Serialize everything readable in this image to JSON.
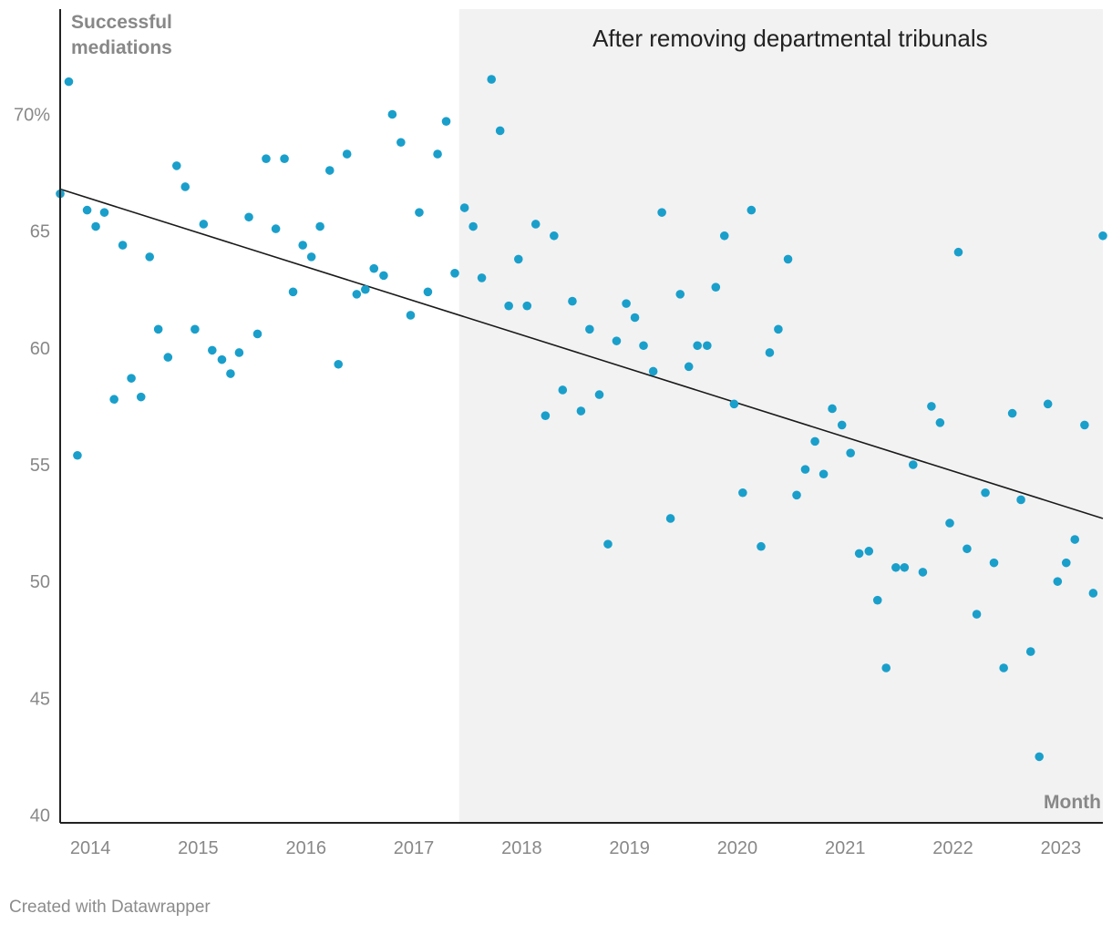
{
  "colors": {
    "point": "#1a9fcb",
    "trend": "#1a1a1a",
    "shade": "#f2f2f2",
    "axis": "#222222",
    "text_muted": "#888888"
  },
  "footer": {
    "credit": "Created with Datawrapper"
  },
  "chart_data": {
    "type": "scatter",
    "title": "",
    "ylabel": "Successful mediations",
    "xlabel": "Month",
    "x_unit": "decimal year",
    "xlim": [
      2013.72,
      2023.39
    ],
    "ylim": [
      40,
      74
    ],
    "y_ticks": [
      {
        "value": 70,
        "label": "70%"
      },
      {
        "value": 65,
        "label": "65"
      },
      {
        "value": 60,
        "label": "60"
      },
      {
        "value": 55,
        "label": "55"
      },
      {
        "value": 50,
        "label": "50"
      },
      {
        "value": 45,
        "label": "45"
      },
      {
        "value": 40,
        "label": "40"
      }
    ],
    "x_ticks": [
      {
        "value": 2014,
        "label": "2014"
      },
      {
        "value": 2015,
        "label": "2015"
      },
      {
        "value": 2016,
        "label": "2016"
      },
      {
        "value": 2017,
        "label": "2017"
      },
      {
        "value": 2018,
        "label": "2018"
      },
      {
        "value": 2019,
        "label": "2019"
      },
      {
        "value": 2020,
        "label": "2020"
      },
      {
        "value": 2021,
        "label": "2021"
      },
      {
        "value": 2022,
        "label": "2022"
      },
      {
        "value": 2023,
        "label": "2023"
      }
    ],
    "shaded_region": {
      "from": 2017.42,
      "to": 2023.39,
      "label": "After removing departmental tribunals"
    },
    "trendline": {
      "from": [
        2013.72,
        66.8
      ],
      "to": [
        2023.39,
        52.7
      ]
    },
    "series": [
      {
        "name": "Successful mediations",
        "points": [
          [
            2013.72,
            66.6
          ],
          [
            2013.8,
            71.4
          ],
          [
            2013.88,
            55.4
          ],
          [
            2013.97,
            65.9
          ],
          [
            2014.05,
            65.2
          ],
          [
            2014.13,
            65.8
          ],
          [
            2014.22,
            57.8
          ],
          [
            2014.3,
            64.4
          ],
          [
            2014.38,
            58.7
          ],
          [
            2014.47,
            57.9
          ],
          [
            2014.55,
            63.9
          ],
          [
            2014.63,
            60.8
          ],
          [
            2014.72,
            59.6
          ],
          [
            2014.8,
            67.8
          ],
          [
            2014.88,
            66.9
          ],
          [
            2014.97,
            60.8
          ],
          [
            2015.05,
            65.3
          ],
          [
            2015.13,
            59.9
          ],
          [
            2015.22,
            59.5
          ],
          [
            2015.3,
            58.9
          ],
          [
            2015.38,
            59.8
          ],
          [
            2015.47,
            65.6
          ],
          [
            2015.55,
            60.6
          ],
          [
            2015.63,
            68.1
          ],
          [
            2015.72,
            65.1
          ],
          [
            2015.8,
            68.1
          ],
          [
            2015.88,
            62.4
          ],
          [
            2015.97,
            64.4
          ],
          [
            2016.05,
            63.9
          ],
          [
            2016.13,
            65.2
          ],
          [
            2016.22,
            67.6
          ],
          [
            2016.3,
            59.3
          ],
          [
            2016.38,
            68.3
          ],
          [
            2016.47,
            62.3
          ],
          [
            2016.55,
            62.5
          ],
          [
            2016.63,
            63.4
          ],
          [
            2016.72,
            63.1
          ],
          [
            2016.8,
            70.0
          ],
          [
            2016.88,
            68.8
          ],
          [
            2016.97,
            61.4
          ],
          [
            2017.05,
            65.8
          ],
          [
            2017.13,
            62.4
          ],
          [
            2017.22,
            68.3
          ],
          [
            2017.3,
            69.7
          ],
          [
            2017.38,
            63.2
          ],
          [
            2017.47,
            66.0
          ],
          [
            2017.55,
            65.2
          ],
          [
            2017.63,
            63.0
          ],
          [
            2017.72,
            71.5
          ],
          [
            2017.8,
            69.3
          ],
          [
            2017.88,
            61.8
          ],
          [
            2017.97,
            63.8
          ],
          [
            2018.05,
            61.8
          ],
          [
            2018.13,
            65.3
          ],
          [
            2018.22,
            57.1
          ],
          [
            2018.3,
            64.8
          ],
          [
            2018.38,
            58.2
          ],
          [
            2018.47,
            62.0
          ],
          [
            2018.55,
            57.3
          ],
          [
            2018.63,
            60.8
          ],
          [
            2018.72,
            58.0
          ],
          [
            2018.8,
            51.6
          ],
          [
            2018.88,
            60.3
          ],
          [
            2018.97,
            61.9
          ],
          [
            2019.05,
            61.3
          ],
          [
            2019.13,
            60.1
          ],
          [
            2019.22,
            59.0
          ],
          [
            2019.3,
            65.8
          ],
          [
            2019.38,
            52.7
          ],
          [
            2019.47,
            62.3
          ],
          [
            2019.55,
            59.2
          ],
          [
            2019.63,
            60.1
          ],
          [
            2019.72,
            60.1
          ],
          [
            2019.8,
            62.6
          ],
          [
            2019.88,
            64.8
          ],
          [
            2019.97,
            57.6
          ],
          [
            2020.05,
            53.8
          ],
          [
            2020.13,
            65.9
          ],
          [
            2020.22,
            51.5
          ],
          [
            2020.3,
            59.8
          ],
          [
            2020.38,
            60.8
          ],
          [
            2020.47,
            63.8
          ],
          [
            2020.55,
            53.7
          ],
          [
            2020.63,
            54.8
          ],
          [
            2020.72,
            56.0
          ],
          [
            2020.8,
            54.6
          ],
          [
            2020.88,
            57.4
          ],
          [
            2020.97,
            56.7
          ],
          [
            2021.05,
            55.5
          ],
          [
            2021.13,
            51.2
          ],
          [
            2021.22,
            51.3
          ],
          [
            2021.3,
            49.2
          ],
          [
            2021.38,
            46.3
          ],
          [
            2021.47,
            50.6
          ],
          [
            2021.55,
            50.6
          ],
          [
            2021.63,
            55.0
          ],
          [
            2021.72,
            50.4
          ],
          [
            2021.8,
            57.5
          ],
          [
            2021.88,
            56.8
          ],
          [
            2021.97,
            52.5
          ],
          [
            2022.05,
            64.1
          ],
          [
            2022.13,
            51.4
          ],
          [
            2022.22,
            48.6
          ],
          [
            2022.3,
            53.8
          ],
          [
            2022.38,
            50.8
          ],
          [
            2022.47,
            46.3
          ],
          [
            2022.55,
            57.2
          ],
          [
            2022.63,
            53.5
          ],
          [
            2022.72,
            47.0
          ],
          [
            2022.8,
            42.5
          ],
          [
            2022.88,
            57.6
          ],
          [
            2022.97,
            50.0
          ],
          [
            2023.05,
            50.8
          ],
          [
            2023.13,
            51.8
          ],
          [
            2023.22,
            56.7
          ],
          [
            2023.3,
            49.5
          ],
          [
            2023.39,
            64.8
          ]
        ]
      }
    ]
  }
}
